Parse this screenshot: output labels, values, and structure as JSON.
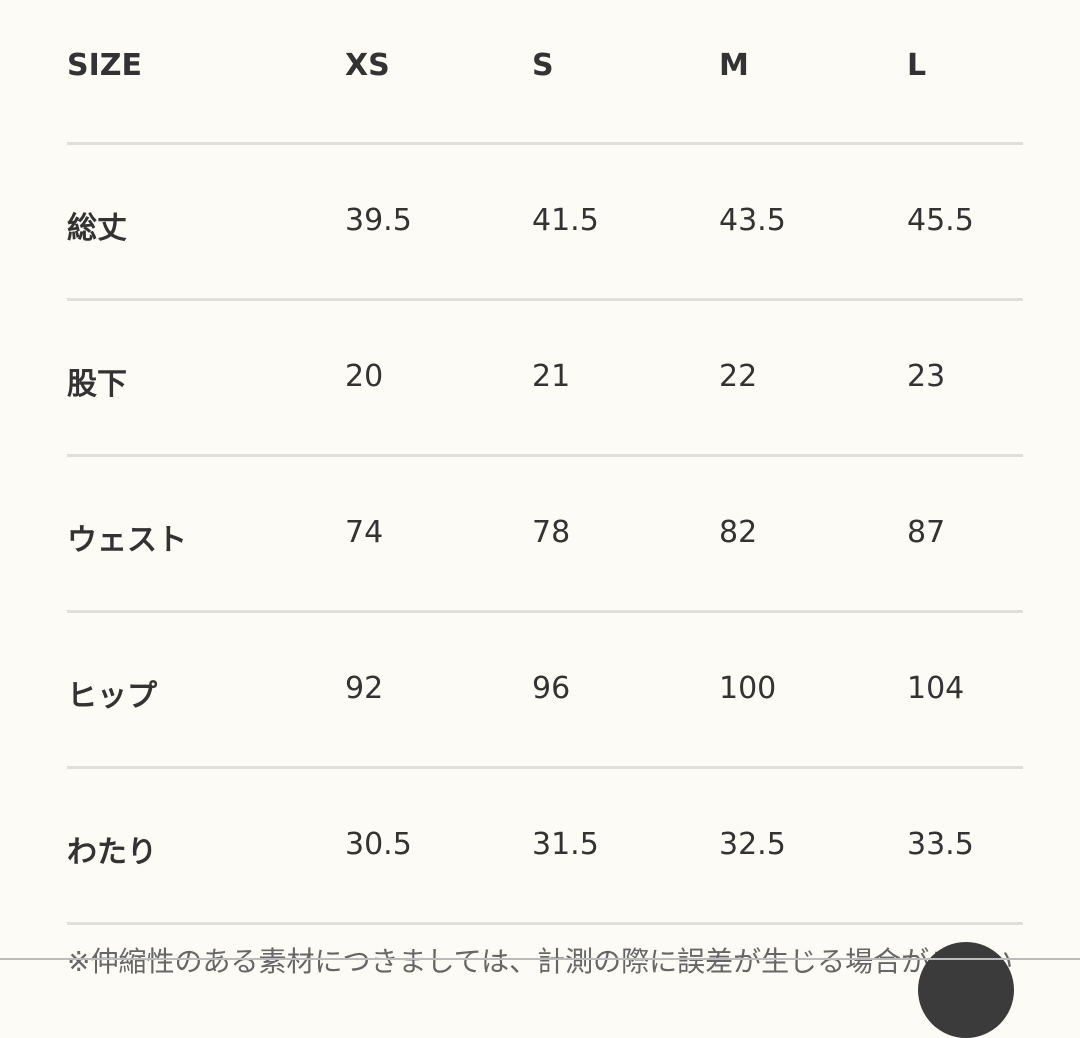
{
  "size_table": {
    "headers": [
      "SIZE",
      "XS",
      "S",
      "M",
      "L"
    ],
    "rows": [
      {
        "label": "総丈",
        "values": [
          "39.5",
          "41.5",
          "43.5",
          "45.5"
        ]
      },
      {
        "label": "股下",
        "values": [
          "20",
          "21",
          "22",
          "23"
        ]
      },
      {
        "label": "ウェスト",
        "values": [
          "74",
          "78",
          "82",
          "87"
        ]
      },
      {
        "label": "ヒップ",
        "values": [
          "92",
          "96",
          "100",
          "104"
        ]
      },
      {
        "label": "わたり",
        "values": [
          "30.5",
          "31.5",
          "32.5",
          "33.5"
        ]
      }
    ]
  },
  "note": "※伸縮性のある素材につきましては、計測の際に誤差が生じる場合がござい"
}
